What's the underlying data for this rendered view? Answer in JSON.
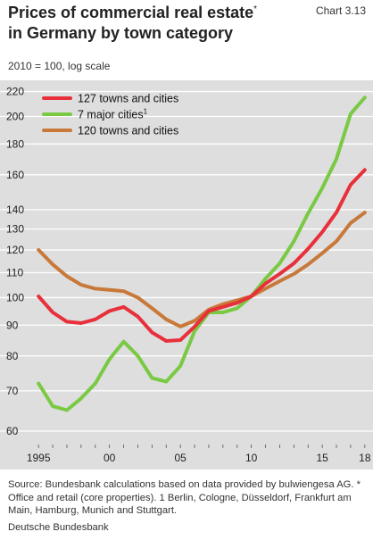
{
  "header": {
    "title_line1": "Prices of commercial real estate",
    "title_star": "*",
    "title_line2": "in Germany by town category",
    "chart_number": "Chart 3.13",
    "subtitle": "2010 = 100, log scale"
  },
  "source_text": "Source: Bundesbank calculations based on data provided by bulwiengesa AG. * Office and retail (core properties). 1 Berlin, Cologne, Düsseldorf, Frankfurt am Main, Hamburg, Munich and Stuttgart.",
  "footer": "Deutsche Bundesbank",
  "chart_data": {
    "type": "line",
    "y_scale": "log",
    "ylim": [
      57,
      225
    ],
    "xlim": [
      1994.8,
      2018.2
    ],
    "y_ticks": [
      60,
      70,
      80,
      90,
      100,
      110,
      120,
      130,
      140,
      160,
      180,
      200,
      220
    ],
    "x_ticks": [
      {
        "value": 1995,
        "label": "1995"
      },
      {
        "value": 2000,
        "label": "00"
      },
      {
        "value": 2005,
        "label": "05"
      },
      {
        "value": 2010,
        "label": "10"
      },
      {
        "value": 2015,
        "label": "15"
      },
      {
        "value": 2018,
        "label": "18"
      }
    ],
    "grid": "horizontal",
    "legend": "top-left",
    "series": [
      {
        "name": "127 towns and cities",
        "color": "#e8303a",
        "x": [
          1995,
          1996,
          1997,
          1998,
          1999,
          2000,
          2001,
          2002,
          2003,
          2004,
          2005,
          2006,
          2007,
          2008,
          2009,
          2010,
          2011,
          2012,
          2013,
          2014,
          2015,
          2016,
          2017,
          2018
        ],
        "values": [
          100.5,
          94.5,
          91.2,
          90.7,
          92,
          95,
          96.5,
          93,
          87.5,
          84.7,
          85,
          89.5,
          95,
          96.5,
          98,
          100.5,
          105.5,
          109.5,
          114,
          120.5,
          128.5,
          138.5,
          154,
          163
        ]
      },
      {
        "name": "7 major cities",
        "name_sup": "1",
        "color": "#7ac943",
        "x": [
          1995,
          1996,
          1997,
          1998,
          1999,
          2000,
          2001,
          2002,
          2003,
          2004,
          2005,
          2006,
          2007,
          2008,
          2009,
          2010,
          2011,
          2012,
          2013,
          2014,
          2015,
          2016,
          2017,
          2018
        ],
        "values": [
          72,
          66,
          65,
          68,
          72,
          79,
          84.5,
          80,
          73.5,
          72.5,
          77,
          88,
          94.5,
          94.5,
          96,
          100.5,
          107.5,
          114,
          124,
          138,
          152,
          170,
          202,
          215
        ]
      },
      {
        "name": "120 towns and cities",
        "color": "#c8793a",
        "x": [
          1995,
          1996,
          1997,
          1998,
          1999,
          2000,
          2001,
          2002,
          2003,
          2004,
          2005,
          2006,
          2007,
          2008,
          2009,
          2010,
          2011,
          2012,
          2013,
          2014,
          2015,
          2016,
          2017,
          2018
        ],
        "values": [
          120,
          113.5,
          108.5,
          105,
          103.5,
          103,
          102.5,
          100,
          96,
          92,
          89.5,
          91.5,
          95.5,
          97.5,
          99,
          100.5,
          103.5,
          106.5,
          109.5,
          113.5,
          118.5,
          124,
          133,
          138.5
        ]
      }
    ]
  }
}
